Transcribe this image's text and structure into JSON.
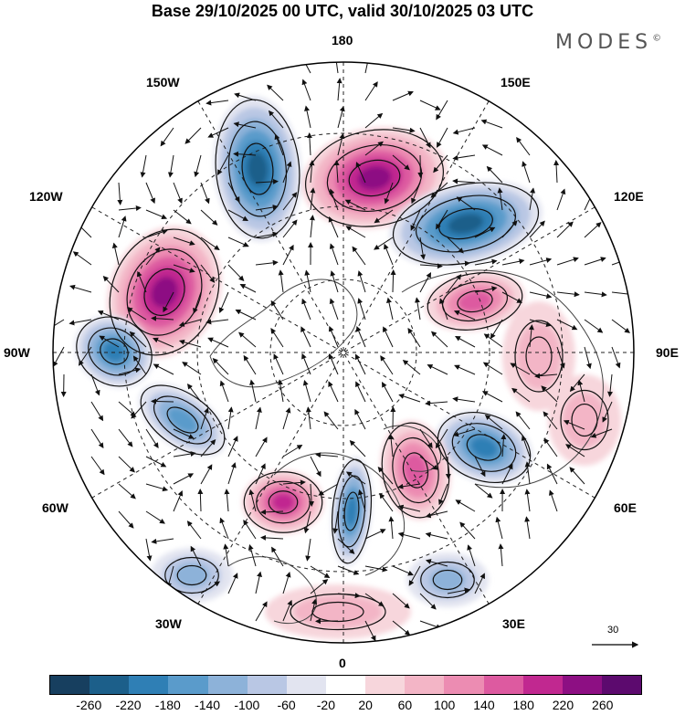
{
  "title": "Base 29/10/2025 00 UTC, valid 30/10/2025 03 UTC",
  "brand": "MODES",
  "brand_mark": "©",
  "longitude_labels": {
    "n180": "180",
    "w150": "150W",
    "e150": "150E",
    "w120": "120W",
    "e120": "120E",
    "w90": "90W",
    "e90": "90E",
    "w60": "60W",
    "e60": "60E",
    "w30": "30W",
    "e30": "30E",
    "zero": "0"
  },
  "reference_vector": {
    "label": "30"
  },
  "colorbar": {
    "ticks": [
      "-260",
      "-220",
      "-180",
      "-140",
      "-100",
      "-60",
      "-20",
      "20",
      "60",
      "100",
      "140",
      "180",
      "220",
      "260"
    ],
    "colors": [
      "#173f5f",
      "#1c5f8a",
      "#2f7fb5",
      "#5a9bcb",
      "#8db2d9",
      "#b9c7e4",
      "#e2e4f0",
      "#ffffff",
      "#f7d6dc",
      "#f3b5c6",
      "#ec8cb2",
      "#dd5aa0",
      "#c12890",
      "#8d0f83",
      "#5c0a6e"
    ]
  },
  "anomalies": [
    {
      "name": "anomaly-blue-150w",
      "value": -250
    },
    {
      "name": "anomaly-purple-180",
      "value": 230
    },
    {
      "name": "anomaly-blue-130e",
      "value": -240
    },
    {
      "name": "anomaly-purple-110w",
      "value": 230
    },
    {
      "name": "anomaly-blue-90w",
      "value": -200
    },
    {
      "name": "anomaly-blue-70w",
      "value": -160
    },
    {
      "name": "anomaly-magenta-110e",
      "value": 170
    },
    {
      "name": "anomaly-pink-90e",
      "value": 80
    },
    {
      "name": "anomaly-blue-50e",
      "value": -180
    },
    {
      "name": "anomaly-magenta-20e",
      "value": 160
    },
    {
      "name": "anomaly-blue-0",
      "value": -200
    },
    {
      "name": "anomaly-magenta-40w",
      "value": 180
    },
    {
      "name": "anomaly-blue-30w",
      "value": -120
    },
    {
      "name": "anomaly-blue-15e",
      "value": -100
    },
    {
      "name": "anomaly-pink-0-south",
      "value": 60
    },
    {
      "name": "anomaly-pink-70e",
      "value": 60
    }
  ]
}
